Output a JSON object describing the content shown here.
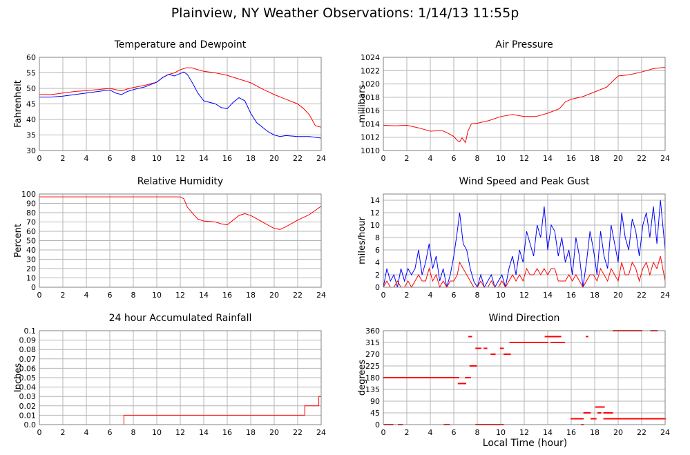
{
  "page": {
    "title": "Plainview, NY Weather Observations: 1/14/13 11:55p",
    "x_axis_label": "Local Time (hour)"
  },
  "colors": {
    "red": "#ff0000",
    "blue": "#0000ff",
    "grid": "#b4b4b4",
    "frame": "#808080"
  },
  "chart_data": [
    {
      "id": "temp",
      "type": "line",
      "title": "Temperature and Dewpoint",
      "ylabel": "Fahrenheit",
      "xlim": [
        0,
        24
      ],
      "ylim": [
        30,
        60
      ],
      "xticks": [
        0,
        2,
        4,
        6,
        8,
        10,
        12,
        14,
        16,
        18,
        20,
        22,
        24
      ],
      "yticks": [
        30,
        35,
        40,
        45,
        50,
        55,
        60
      ],
      "grid": true,
      "series": [
        {
          "color": "red",
          "x": [
            0,
            1,
            2,
            3,
            4,
            5,
            6,
            7,
            7.5,
            8,
            9,
            10,
            10.5,
            11,
            11.5,
            12,
            12.5,
            13,
            13.5,
            14,
            15,
            16,
            17,
            18,
            19,
            20,
            21,
            22,
            22.5,
            23,
            23.5,
            24
          ],
          "y": [
            48,
            48,
            48.5,
            49,
            49.3,
            49.6,
            50,
            49.2,
            49.8,
            50.3,
            51,
            52,
            53.5,
            54.5,
            55,
            56,
            56.6,
            56.6,
            56,
            55.5,
            55,
            54.2,
            53,
            51.8,
            49.8,
            48,
            46.5,
            45,
            43.5,
            41.5,
            38,
            37.5
          ]
        },
        {
          "color": "blue",
          "x": [
            0,
            1,
            2,
            3,
            4,
            5,
            6,
            6.5,
            7,
            7.5,
            8,
            9,
            10,
            10.5,
            11,
            11.5,
            12,
            12.3,
            12.6,
            13,
            13.5,
            14,
            15,
            15.5,
            16,
            16.5,
            17,
            17.5,
            18,
            18.5,
            19,
            19.5,
            20,
            20.5,
            21,
            22,
            23,
            24
          ],
          "y": [
            47.2,
            47.2,
            47.5,
            48,
            48.5,
            49,
            49.5,
            48.5,
            48,
            49,
            49.6,
            50.5,
            52,
            53.5,
            54.5,
            54,
            54.8,
            55.3,
            54.5,
            52,
            48.5,
            46,
            45,
            43.8,
            43.5,
            45.5,
            47,
            46,
            42,
            39,
            37.5,
            36,
            35,
            34.5,
            34.8,
            34.5,
            34.5,
            34
          ]
        }
      ]
    },
    {
      "id": "press",
      "type": "line",
      "title": "Air Pressure",
      "ylabel": "millibars",
      "xlim": [
        0,
        24
      ],
      "ylim": [
        1010,
        1024
      ],
      "xticks": [
        0,
        2,
        4,
        6,
        8,
        10,
        12,
        14,
        16,
        18,
        20,
        22,
        24
      ],
      "yticks": [
        1010,
        1012,
        1014,
        1016,
        1018,
        1020,
        1022,
        1024
      ],
      "grid": true,
      "series": [
        {
          "color": "red",
          "x": [
            0,
            1,
            2,
            3,
            4,
            5,
            5.5,
            6,
            6.3,
            6.5,
            6.7,
            7,
            7.2,
            7.5,
            8,
            9,
            10,
            11,
            12,
            13,
            14,
            15,
            15.5,
            16,
            17,
            18,
            19,
            20,
            21,
            22,
            23,
            24
          ],
          "y": [
            1013.8,
            1013.7,
            1013.8,
            1013.4,
            1012.9,
            1013,
            1012.6,
            1012.1,
            1011.5,
            1011.3,
            1011.9,
            1011.2,
            1012.9,
            1014,
            1014.1,
            1014.5,
            1015.1,
            1015.4,
            1015.1,
            1015.1,
            1015.6,
            1016.3,
            1017.3,
            1017.7,
            1018.1,
            1018.8,
            1019.5,
            1021.2,
            1021.4,
            1021.8,
            1022.3,
            1022.5
          ]
        }
      ]
    },
    {
      "id": "rh",
      "type": "line",
      "title": "Relative Humidity",
      "ylabel": "Percent",
      "xlim": [
        0,
        24
      ],
      "ylim": [
        0,
        100
      ],
      "xticks": [
        0,
        2,
        4,
        6,
        8,
        10,
        12,
        14,
        16,
        18,
        20,
        22,
        24
      ],
      "yticks": [
        0,
        10,
        20,
        30,
        40,
        50,
        60,
        70,
        80,
        90,
        100
      ],
      "grid": true,
      "series": [
        {
          "color": "red",
          "x": [
            0,
            2,
            4,
            6,
            8,
            10,
            12,
            12.3,
            12.6,
            13,
            13.5,
            14,
            15,
            15.5,
            16,
            16.5,
            17,
            17.5,
            18,
            19,
            20,
            20.5,
            21,
            22,
            22.5,
            23,
            24
          ],
          "y": [
            97,
            97,
            97,
            97,
            97,
            97,
            97,
            95,
            86,
            80,
            73,
            71,
            70,
            68,
            67,
            72,
            77,
            79,
            77,
            70,
            63,
            62,
            65,
            72,
            75,
            78,
            87
          ]
        }
      ]
    },
    {
      "id": "wind",
      "type": "line",
      "title": "Wind Speed and Peak Gust",
      "ylabel": "miles/hour",
      "xlim": [
        0,
        24
      ],
      "ylim": [
        0,
        15
      ],
      "xticks": [
        0,
        2,
        4,
        6,
        8,
        10,
        12,
        14,
        16,
        18,
        20,
        22,
        24
      ],
      "yticks": [
        0,
        2,
        4,
        6,
        8,
        10,
        12,
        14
      ],
      "grid": true,
      "series": [
        {
          "color": "blue",
          "x": [
            0,
            0.3,
            0.6,
            0.9,
            1.2,
            1.5,
            1.8,
            2.1,
            2.4,
            2.7,
            3,
            3.3,
            3.6,
            3.9,
            4.2,
            4.5,
            4.8,
            5.1,
            5.4,
            5.7,
            6,
            6.3,
            6.5,
            6.8,
            7.1,
            7.4,
            7.7,
            8,
            8.3,
            8.6,
            8.9,
            9.2,
            9.5,
            9.8,
            10.1,
            10.4,
            10.7,
            11,
            11.3,
            11.6,
            11.9,
            12.2,
            12.5,
            12.8,
            13.1,
            13.4,
            13.7,
            14,
            14.3,
            14.6,
            14.9,
            15.2,
            15.5,
            15.8,
            16.1,
            16.4,
            16.7,
            17,
            17.3,
            17.6,
            17.9,
            18.2,
            18.5,
            18.8,
            19.1,
            19.4,
            19.7,
            20,
            20.3,
            20.6,
            20.9,
            21.2,
            21.5,
            21.8,
            22.1,
            22.4,
            22.7,
            23,
            23.3,
            23.6,
            24
          ],
          "y": [
            0,
            3,
            1,
            2,
            0,
            3,
            1,
            3,
            2,
            3,
            6,
            2,
            4,
            7,
            3,
            5,
            1,
            3,
            0,
            2,
            5,
            9,
            12,
            7,
            6,
            3,
            1,
            0,
            2,
            0,
            1,
            2,
            0,
            1,
            2,
            0,
            3,
            5,
            2,
            6,
            4,
            9,
            7,
            5,
            10,
            8,
            13,
            6,
            10,
            9,
            5,
            8,
            4,
            6,
            2,
            8,
            5,
            0,
            4,
            9,
            6,
            2,
            9,
            5,
            3,
            10,
            7,
            4,
            12,
            8,
            6,
            11,
            9,
            5,
            10,
            12,
            8,
            13,
            7,
            14,
            6
          ]
        },
        {
          "color": "red",
          "x": [
            0,
            0.3,
            0.6,
            0.9,
            1.2,
            1.5,
            1.8,
            2.1,
            2.4,
            2.7,
            3,
            3.3,
            3.6,
            3.9,
            4.2,
            4.5,
            4.8,
            5.1,
            5.4,
            5.7,
            6,
            6.3,
            6.5,
            6.8,
            7.1,
            7.4,
            7.7,
            8,
            8.3,
            8.6,
            8.9,
            9.2,
            9.5,
            9.8,
            10.1,
            10.4,
            10.7,
            11,
            11.3,
            11.6,
            11.9,
            12.2,
            12.5,
            12.8,
            13.1,
            13.4,
            13.7,
            14,
            14.3,
            14.6,
            14.9,
            15.2,
            15.5,
            15.8,
            16.1,
            16.4,
            16.7,
            17,
            17.3,
            17.6,
            17.9,
            18.2,
            18.5,
            18.8,
            19.1,
            19.4,
            19.7,
            20,
            20.3,
            20.6,
            20.9,
            21.2,
            21.5,
            21.8,
            22.1,
            22.4,
            22.7,
            23,
            23.3,
            23.6,
            24
          ],
          "y": [
            0,
            1,
            0,
            0,
            1,
            0,
            0,
            1,
            0,
            1,
            2,
            1,
            1,
            3,
            1,
            2,
            0,
            1,
            0,
            1,
            1,
            2,
            4,
            3,
            2,
            1,
            0,
            0,
            1,
            0,
            0,
            1,
            0,
            0,
            1,
            0,
            1,
            2,
            1,
            2,
            1,
            3,
            2,
            2,
            3,
            2,
            3,
            2,
            3,
            3,
            1,
            1,
            1,
            2,
            1,
            2,
            1,
            0,
            1,
            2,
            2,
            1,
            3,
            2,
            1,
            3,
            2,
            1,
            4,
            2,
            2,
            4,
            3,
            1,
            3,
            4,
            2,
            4,
            3,
            5,
            1
          ]
        }
      ]
    },
    {
      "id": "rain",
      "type": "line",
      "title": "24 hour Accumulated Rainfall",
      "ylabel": "Inches",
      "xlim": [
        0,
        24
      ],
      "ylim": [
        0,
        0.1
      ],
      "xticks": [
        0,
        2,
        4,
        6,
        8,
        10,
        12,
        14,
        16,
        18,
        20,
        22,
        24
      ],
      "yticks": [
        0,
        0.01,
        0.02,
        0.03,
        0.04,
        0.05,
        0.06,
        0.07,
        0.08,
        0.09,
        0.1
      ],
      "ytick_labels": [
        "0.0",
        "0.01",
        "0.02",
        "0.03",
        "0.04",
        "0.05",
        "0.06",
        "0.07",
        "0.08",
        "0.09",
        "0.1"
      ],
      "grid": true,
      "series": [
        {
          "color": "red",
          "x": [
            0,
            7.2,
            7.2,
            22.6,
            22.6,
            23.8,
            23.8,
            24
          ],
          "y": [
            0,
            0,
            0.01,
            0.01,
            0.02,
            0.02,
            0.03,
            0.03
          ]
        }
      ]
    },
    {
      "id": "wdir",
      "type": "scatter",
      "title": "Wind Direction",
      "ylabel": "degrees",
      "xlim": [
        0,
        24
      ],
      "ylim": [
        0,
        360
      ],
      "xticks": [
        0,
        2,
        4,
        6,
        8,
        10,
        12,
        14,
        16,
        18,
        20,
        22,
        24
      ],
      "yticks": [
        0,
        45,
        90,
        135,
        180,
        225,
        270,
        315,
        360
      ],
      "grid": true,
      "segments": [
        {
          "x0": 0,
          "x1": 5.7,
          "step": 0.1,
          "y": 180
        },
        {
          "x0": 0.1,
          "x1": 0.8,
          "step": 0.1,
          "y": 0
        },
        {
          "x0": 1.3,
          "x1": 1.6,
          "step": 0.1,
          "y": 0
        },
        {
          "x0": 5.2,
          "x1": 5.6,
          "step": 0.1,
          "y": 0
        },
        {
          "x0": 5.7,
          "x1": 6.4,
          "step": 0.1,
          "y": 180
        },
        {
          "x0": 6.4,
          "x1": 7.0,
          "step": 0.1,
          "y": 157.5
        },
        {
          "x0": 7.0,
          "x1": 7.4,
          "step": 0.1,
          "y": 180
        },
        {
          "x0": 7.3,
          "x1": 7.5,
          "step": 0.1,
          "y": 337.5
        },
        {
          "x0": 7.4,
          "x1": 7.9,
          "step": 0.1,
          "y": 225
        },
        {
          "x0": 7.9,
          "x1": 8.3,
          "step": 0.1,
          "y": 292.5
        },
        {
          "x0": 8.6,
          "x1": 8.8,
          "step": 0.1,
          "y": 292.5
        },
        {
          "x0": 7.9,
          "x1": 10.2,
          "step": 0.1,
          "y": 0
        },
        {
          "x0": 9.2,
          "x1": 9.5,
          "step": 0.1,
          "y": 270
        },
        {
          "x0": 10.0,
          "x1": 10.2,
          "step": 0.1,
          "y": 292.5
        },
        {
          "x0": 10.3,
          "x1": 10.8,
          "step": 0.1,
          "y": 270
        },
        {
          "x0": 10.8,
          "x1": 14.0,
          "step": 0.1,
          "y": 315
        },
        {
          "x0": 13.8,
          "x1": 15.1,
          "step": 0.1,
          "y": 337.5
        },
        {
          "x0": 14.3,
          "x1": 15.4,
          "step": 0.1,
          "y": 315
        },
        {
          "x0": 17.3,
          "x1": 17.4,
          "step": 0.1,
          "y": 337.5
        },
        {
          "x0": 16.0,
          "x1": 17.0,
          "step": 0.1,
          "y": 22.5
        },
        {
          "x0": 17.1,
          "x1": 17.6,
          "step": 0.1,
          "y": 45
        },
        {
          "x0": 16.9,
          "x1": 17.0,
          "step": 0.1,
          "y": 0
        },
        {
          "x0": 17.7,
          "x1": 18.1,
          "step": 0.1,
          "y": 22.5
        },
        {
          "x0": 18.1,
          "x1": 18.8,
          "step": 0.1,
          "y": 67.5
        },
        {
          "x0": 18.3,
          "x1": 18.5,
          "step": 0.1,
          "y": 45
        },
        {
          "x0": 18.8,
          "x1": 19.5,
          "step": 0.1,
          "y": 45
        },
        {
          "x0": 18.8,
          "x1": 21.6,
          "step": 0.1,
          "y": 22.5
        },
        {
          "x0": 19.6,
          "x1": 22.0,
          "step": 0.1,
          "y": 360
        },
        {
          "x0": 21.7,
          "x1": 24.0,
          "step": 0.1,
          "y": 22.5
        },
        {
          "x0": 22.8,
          "x1": 23.3,
          "step": 0.1,
          "y": 360
        }
      ]
    }
  ]
}
